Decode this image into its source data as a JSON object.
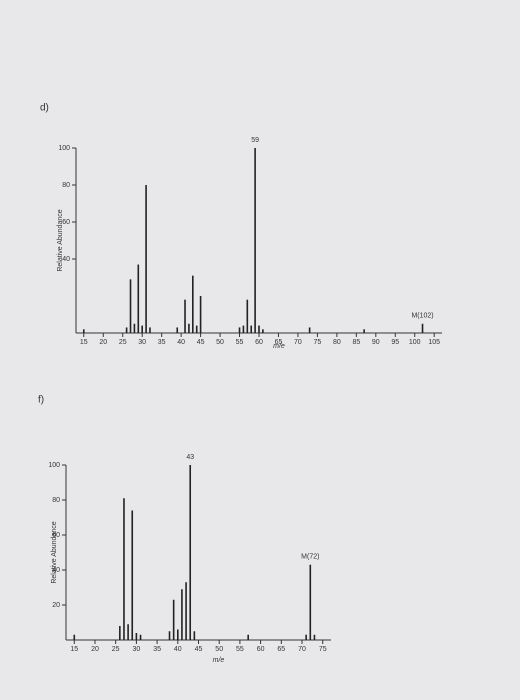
{
  "chart_data": [
    {
      "type": "bar",
      "panel": "d)",
      "ylabel": "Relative Abundance",
      "xlabel": "m/e",
      "x": [
        15,
        26,
        27,
        28,
        29,
        30,
        31,
        32,
        39,
        41,
        42,
        43,
        44,
        45,
        55,
        56,
        57,
        58,
        59,
        60,
        61,
        73,
        87,
        102
      ],
      "values": [
        2,
        3,
        29,
        5,
        37,
        4,
        80,
        3,
        3,
        18,
        5,
        31,
        4,
        20,
        3,
        4,
        18,
        4,
        100,
        4,
        2,
        3,
        2,
        5
      ],
      "color": "#222222",
      "annotations": [
        {
          "text": "59",
          "x": 59
        },
        {
          "text": "M(102)",
          "x": 102
        }
      ],
      "xlim": [
        13,
        107
      ],
      "xticks": [
        15,
        20,
        25,
        30,
        35,
        40,
        45,
        50,
        55,
        60,
        65,
        70,
        75,
        80,
        85,
        90,
        95,
        100,
        105
      ],
      "ylim": [
        0,
        100
      ],
      "yticks": [
        40,
        60,
        80,
        100
      ]
    },
    {
      "type": "bar",
      "panel": "f)",
      "ylabel": "Relative Abundance",
      "xlabel": "m/e",
      "x": [
        15,
        26,
        27,
        28,
        29,
        30,
        31,
        38,
        39,
        40,
        41,
        42,
        43,
        44,
        57,
        71,
        72,
        73
      ],
      "values": [
        3,
        8,
        81,
        9,
        74,
        4,
        3,
        5,
        23,
        6,
        29,
        33,
        100,
        5,
        3,
        3,
        43,
        3
      ],
      "color": "#222222",
      "annotations": [
        {
          "text": "43",
          "x": 43
        },
        {
          "text": "M(72)",
          "x": 72
        }
      ],
      "xlim": [
        13,
        77
      ],
      "xticks": [
        15,
        20,
        25,
        30,
        35,
        40,
        45,
        50,
        55,
        60,
        65,
        70,
        75
      ],
      "ylim": [
        0,
        100
      ],
      "yticks": [
        20,
        40,
        60,
        80,
        100
      ]
    }
  ]
}
